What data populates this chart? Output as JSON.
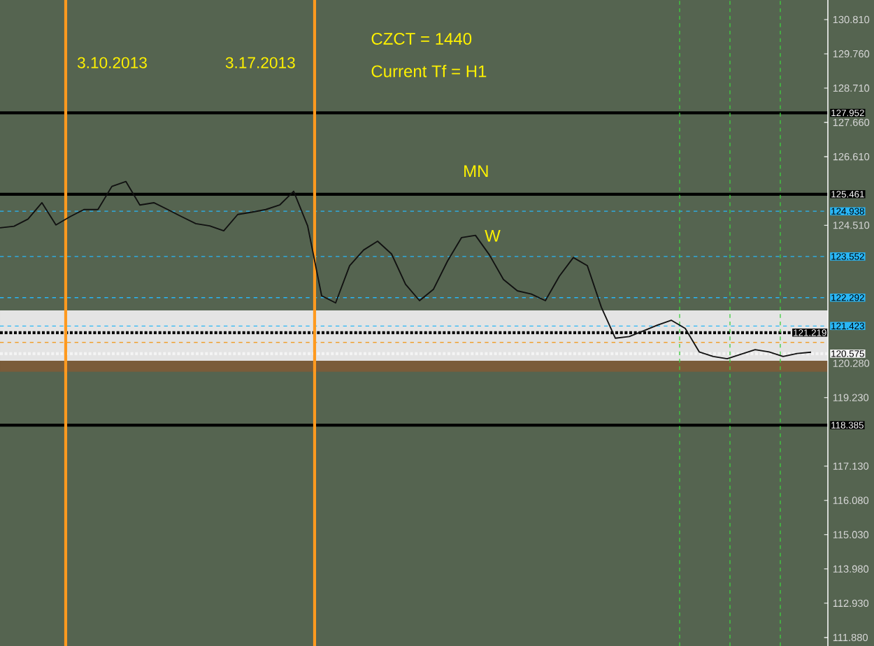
{
  "chart_data": {
    "type": "line",
    "categories": [
      null,
      null,
      null,
      null,
      null,
      null,
      null,
      null,
      null,
      null,
      null,
      null,
      null,
      null,
      null,
      null,
      null,
      null,
      null,
      null,
      null,
      null,
      null,
      null,
      null,
      null,
      null,
      null,
      null,
      null,
      null,
      null,
      null,
      null,
      null,
      null,
      null,
      null,
      null,
      null,
      null,
      null,
      null,
      null,
      null,
      null,
      null,
      null,
      null,
      null,
      null,
      null,
      null,
      null,
      null,
      null,
      null,
      null,
      null
    ],
    "series": [
      {
        "color": "#111111",
        "values": [
          124.43,
          124.48,
          124.7,
          125.2,
          124.52,
          124.77,
          124.99,
          124.99,
          125.7,
          125.85,
          125.13,
          125.2,
          124.99,
          124.77,
          124.56,
          124.49,
          124.34,
          124.84,
          124.91,
          124.99,
          125.13,
          125.55,
          124.49,
          122.35,
          122.13,
          123.27,
          123.75,
          124.02,
          123.63,
          122.7,
          122.2,
          122.55,
          123.41,
          124.13,
          124.2,
          123.6,
          122.85,
          122.5,
          122.4,
          122.2,
          122.95,
          123.52,
          123.27,
          122.0,
          121.05,
          121.1,
          121.27,
          121.45,
          121.6,
          121.35,
          120.63,
          120.49,
          120.42,
          120.56,
          120.7,
          120.63,
          120.49,
          120.58,
          120.62
        ]
      }
    ],
    "ylim": [
      111.62,
      131.41
    ],
    "yticks": [
      {
        "value": 111.88,
        "label": "111.880"
      },
      {
        "value": 112.93,
        "label": "112.930"
      },
      {
        "value": 113.98,
        "label": "113.980"
      },
      {
        "value": 115.03,
        "label": "115.030"
      },
      {
        "value": 116.08,
        "label": "116.080"
      },
      {
        "value": 117.13,
        "label": "117.130"
      },
      {
        "value": 119.23,
        "label": "119.230"
      },
      {
        "value": 120.28,
        "label": "120.280"
      },
      {
        "value": 124.51,
        "label": "124.510"
      },
      {
        "value": 126.61,
        "label": "126.610"
      },
      {
        "value": 127.66,
        "label": "127.660"
      },
      {
        "value": 128.71,
        "label": "128.710"
      },
      {
        "value": 129.76,
        "label": "129.760"
      },
      {
        "value": 130.81,
        "label": "130.810"
      }
    ],
    "tick_labels": "y",
    "marker": "none",
    "line_style": "solid",
    "bands": [
      {
        "axis": "y",
        "from": 120.36,
        "to": 121.9,
        "color": "#e4e4e4"
      },
      {
        "axis": "y",
        "from": 120.02,
        "to": 120.36,
        "color": "#7a5c3a"
      }
    ],
    "ref_lines": [
      {
        "axis": "y",
        "value": 127.952,
        "label": "127.952",
        "color": "#000000",
        "line_style": "solid"
      },
      {
        "axis": "y",
        "value": 125.461,
        "label": "125.461",
        "color": "#000000",
        "line_style": "solid"
      },
      {
        "axis": "y",
        "value": 124.938,
        "label": "124.938",
        "color": "#29b6f6",
        "line_style": "dashed"
      },
      {
        "axis": "y",
        "value": 123.552,
        "label": "123.552",
        "color": "#29b6f6",
        "line_style": "dashed"
      },
      {
        "axis": "y",
        "value": 122.292,
        "label": "122.292",
        "color": "#29b6f6",
        "line_style": "dashed"
      },
      {
        "axis": "y",
        "value": 121.423,
        "label": "121.423",
        "color": "#29b6f6",
        "line_style": "dashed"
      },
      {
        "axis": "y",
        "value": 121.219,
        "label": "121.219",
        "color": "#000000",
        "line_style": "dotted"
      },
      {
        "axis": "y",
        "value": 120.92,
        "color": "#f0a030",
        "line_style": "dashed"
      },
      {
        "axis": "y",
        "value": 120.575,
        "label": "120.575",
        "color": "#f4f4f4",
        "line_style": "dotted"
      },
      {
        "axis": "y",
        "value": 118.385,
        "label": "118.385",
        "color": "#000000",
        "line_style": "solid"
      }
    ],
    "annotations": [
      "CZCT = 1440",
      "Current Tf = H1",
      "MN",
      "W",
      "3.10.2013",
      "3.17.2013"
    ]
  }
}
